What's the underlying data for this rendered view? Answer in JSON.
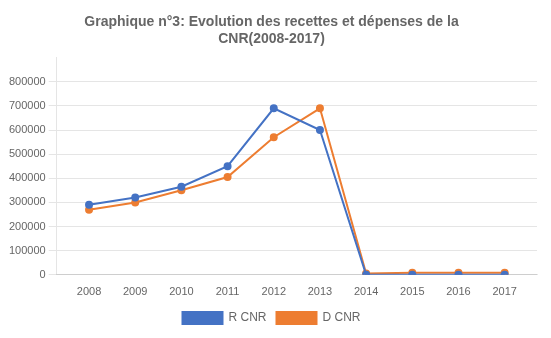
{
  "chart_data": {
    "type": "line",
    "title": "Graphique n°3: Evolution des recettes et dépenses de la\nCNR(2008-2017)",
    "x": [
      2008,
      2009,
      2010,
      2011,
      2012,
      2013,
      2014,
      2015,
      2016,
      2017
    ],
    "series": [
      {
        "name": "R CNR",
        "color": "#4472C4",
        "marker": "circle",
        "values": [
          290000,
          320000,
          365000,
          450000,
          690000,
          600000,
          0,
          0,
          0,
          0
        ]
      },
      {
        "name": "D CNR",
        "color": "#ED7D31",
        "marker": "circle",
        "values": [
          270000,
          300000,
          350000,
          405000,
          570000,
          690000,
          5000,
          8000,
          8000,
          8000
        ]
      }
    ],
    "xlim": [
      2007.3,
      2017.7
    ],
    "xticks": [
      2008,
      2009,
      2010,
      2011,
      2012,
      2013,
      2014,
      2015,
      2016,
      2017
    ],
    "ylim": [
      0,
      900000
    ],
    "yticks": [
      0,
      100000,
      200000,
      300000,
      400000,
      500000,
      600000,
      700000,
      800000
    ],
    "grid": true,
    "legend": "bottom"
  }
}
